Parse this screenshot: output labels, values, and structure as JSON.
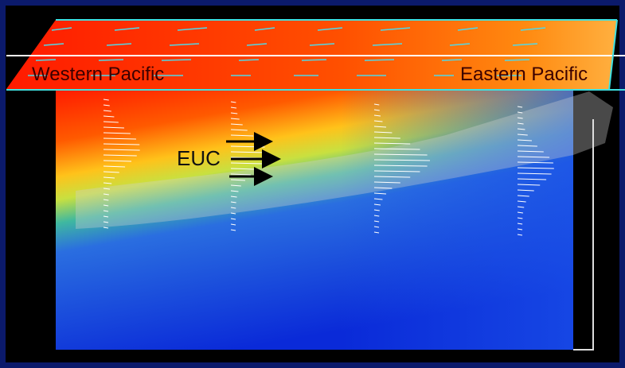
{
  "labels": {
    "west": "Western Pacific",
    "east": "Eastern Pacific",
    "current": "EUC"
  }
}
